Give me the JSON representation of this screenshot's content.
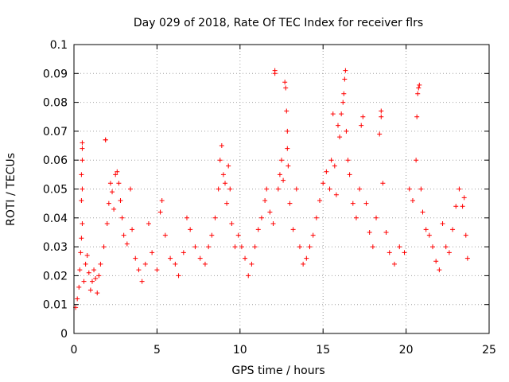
{
  "chart_data": {
    "type": "scatter",
    "title": "Day 029 of 2018, Rate Of TEC Index for receiver flrs",
    "xlabel": "GPS time / hours",
    "ylabel": "ROTI / TECUs",
    "xlim": [
      0,
      25
    ],
    "ylim": [
      0,
      0.1
    ],
    "xticks": [
      "0",
      "5",
      "10",
      "15",
      "20",
      "25"
    ],
    "yticks": [
      "0",
      "0.01",
      "0.02",
      "0.03",
      "0.04",
      "0.05",
      "0.06",
      "0.07",
      "0.08",
      "0.09",
      "0.1"
    ],
    "grid": true,
    "legend": "none",
    "marker": "plus",
    "series_color": "#ff0000",
    "series": [
      {
        "values": [
          [
            0.1,
            0.009
          ],
          [
            0.2,
            0.012
          ],
          [
            0.3,
            0.016
          ],
          [
            0.35,
            0.022
          ],
          [
            0.4,
            0.028
          ],
          [
            0.45,
            0.033
          ],
          [
            0.5,
            0.038
          ],
          [
            0.45,
            0.046
          ],
          [
            0.5,
            0.05
          ],
          [
            0.45,
            0.055
          ],
          [
            0.5,
            0.06
          ],
          [
            0.5,
            0.064
          ],
          [
            0.5,
            0.066
          ],
          [
            0.6,
            0.018
          ],
          [
            0.7,
            0.024
          ],
          [
            0.8,
            0.027
          ],
          [
            0.9,
            0.021
          ],
          [
            1.0,
            0.015
          ],
          [
            1.1,
            0.018
          ],
          [
            1.2,
            0.022
          ],
          [
            1.3,
            0.019
          ],
          [
            1.4,
            0.014
          ],
          [
            1.5,
            0.02
          ],
          [
            1.6,
            0.024
          ],
          [
            1.8,
            0.03
          ],
          [
            1.9,
            0.067
          ],
          [
            1.9,
            0.067
          ],
          [
            2.0,
            0.038
          ],
          [
            2.1,
            0.045
          ],
          [
            2.2,
            0.052
          ],
          [
            2.3,
            0.049
          ],
          [
            2.4,
            0.043
          ],
          [
            2.5,
            0.055
          ],
          [
            2.6,
            0.056
          ],
          [
            2.7,
            0.052
          ],
          [
            2.8,
            0.046
          ],
          [
            2.9,
            0.04
          ],
          [
            3.0,
            0.034
          ],
          [
            3.2,
            0.031
          ],
          [
            3.4,
            0.05
          ],
          [
            3.5,
            0.036
          ],
          [
            3.7,
            0.026
          ],
          [
            3.9,
            0.022
          ],
          [
            4.1,
            0.018
          ],
          [
            4.3,
            0.024
          ],
          [
            4.5,
            0.038
          ],
          [
            4.7,
            0.028
          ],
          [
            5.0,
            0.022
          ],
          [
            5.2,
            0.042
          ],
          [
            5.3,
            0.046
          ],
          [
            5.5,
            0.034
          ],
          [
            5.8,
            0.026
          ],
          [
            6.1,
            0.024
          ],
          [
            6.3,
            0.02
          ],
          [
            6.6,
            0.028
          ],
          [
            6.8,
            0.04
          ],
          [
            7.0,
            0.036
          ],
          [
            7.3,
            0.03
          ],
          [
            7.6,
            0.026
          ],
          [
            7.9,
            0.024
          ],
          [
            8.1,
            0.03
          ],
          [
            8.3,
            0.034
          ],
          [
            8.5,
            0.04
          ],
          [
            8.7,
            0.05
          ],
          [
            8.8,
            0.06
          ],
          [
            8.9,
            0.065
          ],
          [
            9.0,
            0.055
          ],
          [
            9.1,
            0.052
          ],
          [
            9.2,
            0.045
          ],
          [
            9.3,
            0.058
          ],
          [
            9.4,
            0.05
          ],
          [
            9.5,
            0.038
          ],
          [
            9.7,
            0.03
          ],
          [
            9.9,
            0.034
          ],
          [
            10.1,
            0.03
          ],
          [
            10.3,
            0.026
          ],
          [
            10.5,
            0.02
          ],
          [
            10.7,
            0.024
          ],
          [
            10.9,
            0.03
          ],
          [
            11.1,
            0.036
          ],
          [
            11.3,
            0.04
          ],
          [
            11.5,
            0.046
          ],
          [
            11.6,
            0.05
          ],
          [
            11.8,
            0.042
          ],
          [
            12.0,
            0.038
          ],
          [
            12.1,
            0.091
          ],
          [
            12.1,
            0.09
          ],
          [
            12.3,
            0.05
          ],
          [
            12.4,
            0.055
          ],
          [
            12.5,
            0.06
          ],
          [
            12.6,
            0.053
          ],
          [
            12.7,
            0.087
          ],
          [
            12.75,
            0.085
          ],
          [
            12.8,
            0.077
          ],
          [
            12.85,
            0.07
          ],
          [
            12.85,
            0.064
          ],
          [
            12.9,
            0.058
          ],
          [
            13.0,
            0.045
          ],
          [
            13.2,
            0.036
          ],
          [
            13.4,
            0.05
          ],
          [
            13.6,
            0.03
          ],
          [
            13.8,
            0.024
          ],
          [
            14.0,
            0.026
          ],
          [
            14.2,
            0.03
          ],
          [
            14.4,
            0.034
          ],
          [
            14.6,
            0.04
          ],
          [
            14.8,
            0.046
          ],
          [
            15.0,
            0.052
          ],
          [
            15.2,
            0.056
          ],
          [
            15.4,
            0.05
          ],
          [
            15.5,
            0.06
          ],
          [
            15.6,
            0.076
          ],
          [
            15.7,
            0.058
          ],
          [
            15.8,
            0.048
          ],
          [
            15.9,
            0.072
          ],
          [
            16.0,
            0.068
          ],
          [
            16.1,
            0.076
          ],
          [
            16.2,
            0.08
          ],
          [
            16.25,
            0.083
          ],
          [
            16.3,
            0.088
          ],
          [
            16.35,
            0.091
          ],
          [
            16.4,
            0.07
          ],
          [
            16.5,
            0.06
          ],
          [
            16.6,
            0.055
          ],
          [
            16.8,
            0.045
          ],
          [
            17.0,
            0.04
          ],
          [
            17.2,
            0.05
          ],
          [
            17.3,
            0.072
          ],
          [
            17.4,
            0.075
          ],
          [
            17.6,
            0.045
          ],
          [
            17.8,
            0.035
          ],
          [
            18.0,
            0.03
          ],
          [
            18.2,
            0.04
          ],
          [
            18.4,
            0.069
          ],
          [
            18.5,
            0.077
          ],
          [
            18.5,
            0.075
          ],
          [
            18.6,
            0.052
          ],
          [
            18.8,
            0.035
          ],
          [
            19.0,
            0.028
          ],
          [
            19.3,
            0.024
          ],
          [
            19.6,
            0.03
          ],
          [
            19.9,
            0.028
          ],
          [
            20.2,
            0.05
          ],
          [
            20.4,
            0.046
          ],
          [
            20.6,
            0.06
          ],
          [
            20.65,
            0.075
          ],
          [
            20.7,
            0.083
          ],
          [
            20.75,
            0.085
          ],
          [
            20.8,
            0.086
          ],
          [
            20.9,
            0.05
          ],
          [
            21.0,
            0.042
          ],
          [
            21.2,
            0.036
          ],
          [
            21.4,
            0.034
          ],
          [
            21.6,
            0.03
          ],
          [
            21.8,
            0.025
          ],
          [
            22.0,
            0.022
          ],
          [
            22.2,
            0.038
          ],
          [
            22.4,
            0.03
          ],
          [
            22.6,
            0.028
          ],
          [
            22.8,
            0.036
          ],
          [
            23.0,
            0.044
          ],
          [
            23.2,
            0.05
          ],
          [
            23.4,
            0.044
          ],
          [
            23.5,
            0.047
          ],
          [
            23.6,
            0.034
          ],
          [
            23.7,
            0.026
          ]
        ]
      }
    ]
  }
}
